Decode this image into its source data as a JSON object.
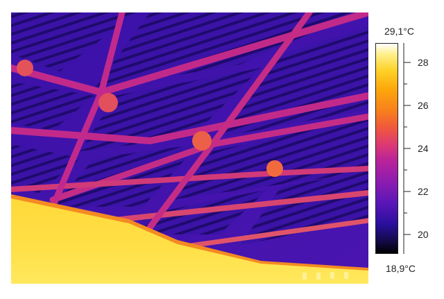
{
  "thermal_image": {
    "description_icon": "thermal-ceiling-image"
  },
  "scale": {
    "max_label": "29,1°C",
    "min_label": "18,9°C",
    "tick_labels": [
      "28",
      "26",
      "24",
      "22",
      "20"
    ],
    "colors": {
      "cold": "#000000",
      "mid_purple": "#5a16b8",
      "magenta": "#b8239a",
      "orange": "#f7801c",
      "yellow": "#fed026",
      "hot": "#ffffff"
    }
  }
}
